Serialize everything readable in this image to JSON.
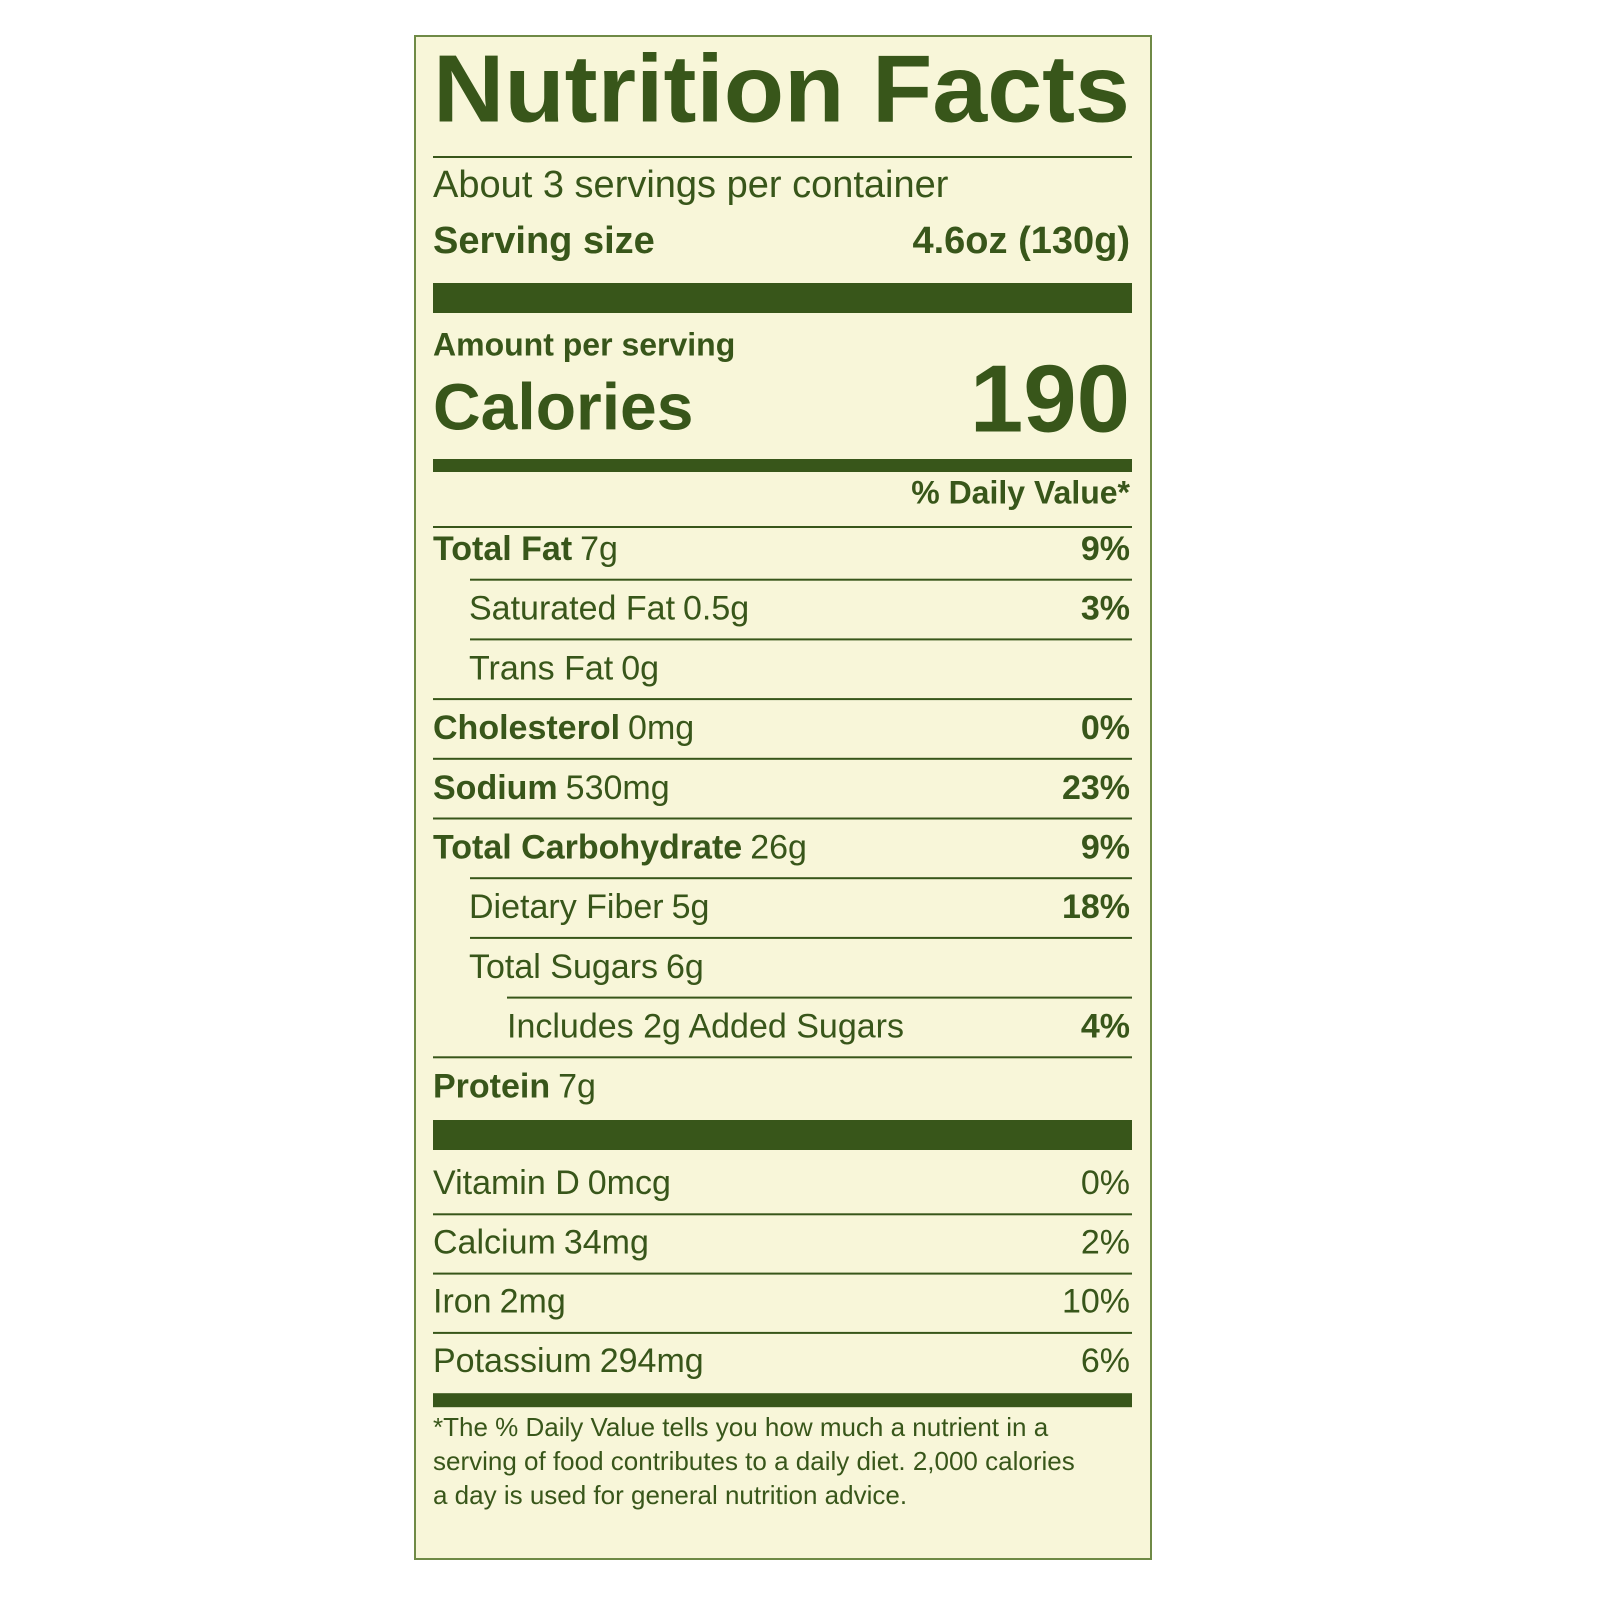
{
  "title": "Nutrition Facts",
  "servings": "About 3 servings per container",
  "serving_size": {
    "label": "Serving size",
    "value": "4.6oz (130g)"
  },
  "amount_per_serving": "Amount per serving",
  "calories": {
    "label": "Calories",
    "value": "190"
  },
  "daily_value_header": "% Daily Value*",
  "nutrients": [
    {
      "name": "Total Fat",
      "amount": "7g",
      "dv": "9%",
      "sub": [
        {
          "name": "Saturated Fat",
          "amount": "0.5g",
          "dv": "3%"
        },
        {
          "name": "Trans Fat",
          "amount": "0g"
        }
      ]
    },
    {
      "name": "Cholesterol",
      "amount": "0mg",
      "dv": "0%"
    },
    {
      "name": "Sodium",
      "amount": "530mg",
      "dv": "23%"
    },
    {
      "name": "Total Carbohydrate",
      "amount": "26g",
      "dv": "9%",
      "sub": [
        {
          "name": "Dietary Fiber",
          "amount": "5g",
          "dv": "18%"
        },
        {
          "name": "Total Sugars",
          "amount": "6g",
          "sub": [
            {
              "name": "Includes 2g Added Sugars",
              "dv": "4%"
            }
          ]
        }
      ]
    },
    {
      "name": "Protein",
      "amount": "7g"
    }
  ],
  "vitamins": [
    {
      "name": "Vitamin D",
      "amount": "0mcg",
      "dv": "0%"
    },
    {
      "name": "Calcium",
      "amount": "34mg",
      "dv": "2%"
    },
    {
      "name": "Iron",
      "amount": "2mg",
      "dv": "10%"
    },
    {
      "name": "Potassium",
      "amount": "294mg",
      "dv": "6%"
    }
  ],
  "footnote": [
    "*The % Daily Value tells you how much a nutrient in a",
    "serving of food contributes to a daily diet. 2,000 calories",
    "a day is used for general nutrition advice."
  ]
}
